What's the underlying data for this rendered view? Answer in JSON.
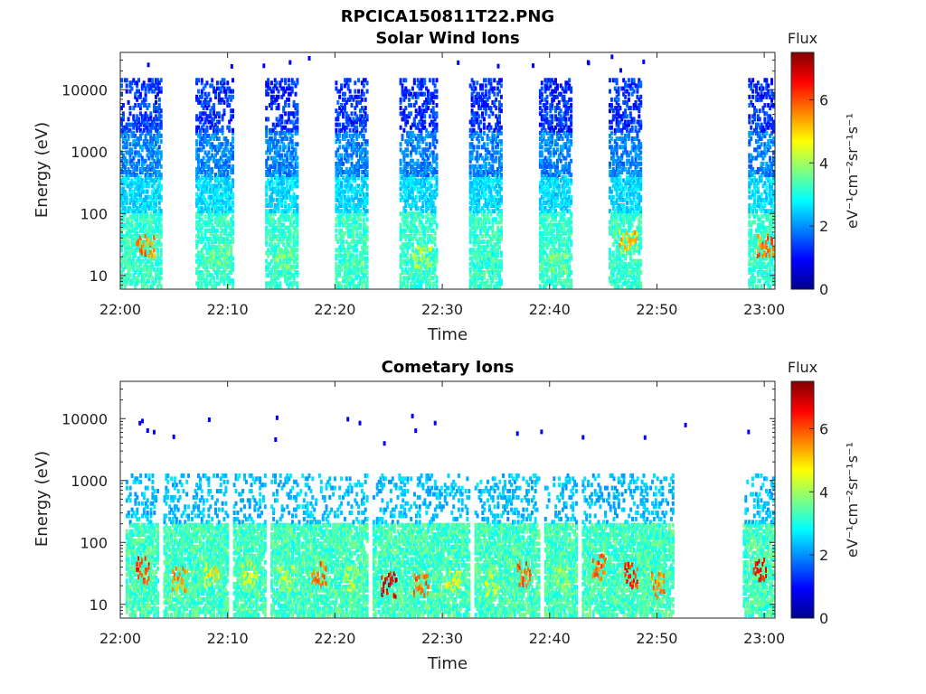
{
  "figure": {
    "title": "RPCICA150811T22.PNG"
  },
  "chart_data": [
    {
      "type": "heatmap",
      "title": "Solar Wind Ions",
      "xlabel": "Time",
      "ylabel": "Energy (eV)",
      "x_ticks": [
        "22:00",
        "22:10",
        "22:20",
        "22:30",
        "22:40",
        "22:50",
        "23:00"
      ],
      "xlim": [
        "22:00",
        "23:01"
      ],
      "y_scale": "log",
      "y_ticks": [
        "10",
        "100",
        "1000",
        "10000"
      ],
      "ylim": [
        6,
        40000
      ],
      "colorbar": {
        "title": "Flux",
        "label": "eV⁻¹cm⁻²sr⁻¹s⁻¹",
        "ticks": [
          "0",
          "2",
          "4",
          "6"
        ],
        "range": [
          0,
          7.5
        ]
      },
      "bursts": [
        {
          "start": "22:00",
          "end": "22:03.8",
          "e_min": 6,
          "e_max": 15000,
          "hot_e": 30,
          "hot_flux": 6.2
        },
        {
          "start": "22:07.0",
          "end": "22:10.5",
          "e_min": 6,
          "e_max": 15000,
          "hot_e": 20,
          "hot_flux": 4.3
        },
        {
          "start": "22:13.5",
          "end": "22:16.5",
          "e_min": 6,
          "e_max": 15000,
          "hot_e": 18,
          "hot_flux": 4.2
        },
        {
          "start": "22:20.0",
          "end": "22:23.0",
          "e_min": 6,
          "e_max": 15000,
          "hot_e": 15,
          "hot_flux": 4.0
        },
        {
          "start": "22:26.0",
          "end": "22:29.5",
          "e_min": 6,
          "e_max": 15000,
          "hot_e": 20,
          "hot_flux": 4.8
        },
        {
          "start": "22:32.5",
          "end": "22:35.5",
          "e_min": 6,
          "e_max": 15000,
          "hot_e": 15,
          "hot_flux": 3.8
        },
        {
          "start": "22:39.0",
          "end": "22:42.0",
          "e_min": 6,
          "e_max": 15000,
          "hot_e": 15,
          "hot_flux": 4.2
        },
        {
          "start": "22:45.5",
          "end": "22:48.5",
          "e_min": 6,
          "e_max": 15000,
          "hot_e": 35,
          "hot_flux": 5.6
        },
        {
          "start": "22:58.5",
          "end": "23:01",
          "e_min": 6,
          "e_max": 15000,
          "hot_e": 30,
          "hot_flux": 6.3
        }
      ]
    },
    {
      "type": "heatmap",
      "title": "Cometary Ions",
      "xlabel": "Time",
      "ylabel": "Energy (eV)",
      "x_ticks": [
        "22:00",
        "22:10",
        "22:20",
        "22:30",
        "22:40",
        "22:50",
        "23:00"
      ],
      "xlim": [
        "22:00",
        "23:01"
      ],
      "y_scale": "log",
      "y_ticks": [
        "10",
        "100",
        "1000",
        "10000"
      ],
      "ylim": [
        6,
        40000
      ],
      "colorbar": {
        "title": "Flux",
        "label": "eV⁻¹cm⁻²sr⁻¹s⁻¹",
        "ticks": [
          "0",
          "2",
          "4",
          "6"
        ],
        "range": [
          0,
          7.5
        ]
      },
      "bursts": [
        {
          "t": "22:02.0",
          "hot_e": 35,
          "hot_flux": 6.8
        },
        {
          "t": "22:05.5",
          "hot_e": 25,
          "hot_flux": 6.0
        },
        {
          "t": "22:08.5",
          "hot_e": 30,
          "hot_flux": 5.3
        },
        {
          "t": "22:12.0",
          "hot_e": 30,
          "hot_flux": 5.0
        },
        {
          "t": "22:15.5",
          "hot_e": 25,
          "hot_flux": 4.6
        },
        {
          "t": "22:18.5",
          "hot_e": 30,
          "hot_flux": 6.2
        },
        {
          "t": "22:21.5",
          "hot_e": 25,
          "hot_flux": 4.6
        },
        {
          "t": "22:25.0",
          "hot_e": 20,
          "hot_flux": 7.2
        },
        {
          "t": "22:28.0",
          "hot_e": 22,
          "hot_flux": 6.3
        },
        {
          "t": "22:31.0",
          "hot_e": 25,
          "hot_flux": 5.0
        },
        {
          "t": "22:34.5",
          "hot_e": 22,
          "hot_flux": 4.7
        },
        {
          "t": "22:37.5",
          "hot_e": 30,
          "hot_flux": 6.3
        },
        {
          "t": "22:41.0",
          "hot_e": 25,
          "hot_flux": 4.6
        },
        {
          "t": "22:44.5",
          "hot_e": 40,
          "hot_flux": 6.3
        },
        {
          "t": "22:47.5",
          "hot_e": 30,
          "hot_flux": 6.8
        },
        {
          "t": "22:50.0",
          "hot_e": 20,
          "hot_flux": 6.0
        },
        {
          "t": "22:59.5",
          "hot_e": 35,
          "hot_flux": 7.0
        }
      ]
    }
  ]
}
